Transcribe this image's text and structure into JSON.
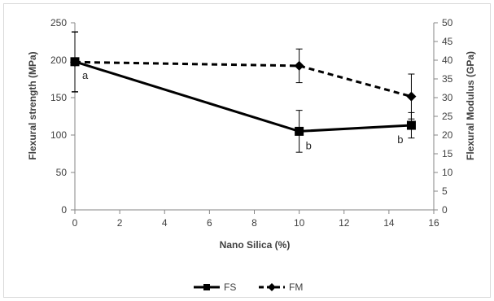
{
  "chart_data": {
    "type": "line",
    "xlabel": "Nano Silica (%)",
    "ylabel_left": "Flexural strength (MPa)",
    "ylabel_right": "Flexural Modulus (GPa)",
    "xlim": [
      0,
      16
    ],
    "ylim_left": [
      0,
      250
    ],
    "ylim_right": [
      0,
      50
    ],
    "x_ticks": [
      "0",
      "2",
      "4",
      "6",
      "8",
      "10",
      "12",
      "14",
      "16"
    ],
    "y_left_ticks": [
      "0",
      "50",
      "100",
      "150",
      "200",
      "250"
    ],
    "y_right_ticks": [
      "0",
      "5",
      "10",
      "15",
      "20",
      "25",
      "30",
      "35",
      "40",
      "45",
      "50"
    ],
    "grid": false,
    "legend_position": "bottom",
    "series": [
      {
        "name": "FS",
        "axis": "left",
        "style": "solid",
        "marker": "square",
        "color": "#000000",
        "x": [
          0,
          10,
          15
        ],
        "y": [
          198,
          105,
          113
        ],
        "error": [
          40,
          28,
          17
        ]
      },
      {
        "name": "FM",
        "axis": "right",
        "style": "dashed",
        "marker": "diamond",
        "color": "#000000",
        "x": [
          0,
          10,
          15
        ],
        "y": [
          39.5,
          38.5,
          30.3
        ],
        "error": [
          8,
          4.5,
          6
        ]
      }
    ],
    "annotations": [
      {
        "text": "a",
        "x": 0,
        "series": "FS"
      },
      {
        "text": "b",
        "x": 10,
        "series": "FS"
      },
      {
        "text": "b",
        "x": 15,
        "series": "FS"
      }
    ]
  }
}
